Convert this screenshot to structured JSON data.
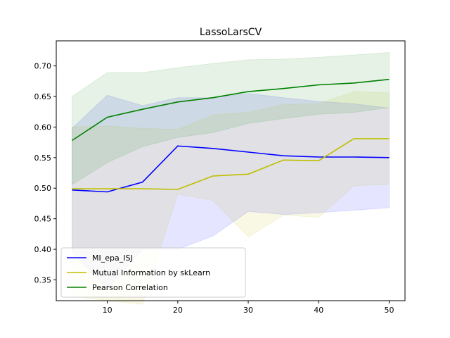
{
  "chart_data": {
    "type": "line",
    "title": "LassoLarsCV",
    "xlabel": "",
    "ylabel": "",
    "xlim": [
      2.75,
      52.25
    ],
    "ylim": [
      0.316,
      0.741
    ],
    "x_ticks": [
      10,
      20,
      30,
      40,
      50
    ],
    "y_ticks": [
      0.35,
      0.4,
      0.45,
      0.5,
      0.55,
      0.6,
      0.65,
      0.7
    ],
    "x_tick_labels": [
      "10",
      "20",
      "30",
      "40",
      "50"
    ],
    "y_tick_labels": [
      "0.35",
      "0.40",
      "0.45",
      "0.50",
      "0.55",
      "0.60",
      "0.65",
      "0.70"
    ],
    "grid": false,
    "legend_position": "lower-left",
    "x": [
      5,
      10,
      15,
      20,
      25,
      30,
      35,
      40,
      45,
      50
    ],
    "series": [
      {
        "name": "MI_epa_ISJ",
        "color": "#0000ff",
        "values": [
          0.497,
          0.494,
          0.51,
          0.569,
          0.565,
          0.559,
          0.553,
          0.551,
          0.551,
          0.55
        ],
        "lower": [
          0.395,
          0.336,
          0.4,
          0.4,
          0.422,
          0.462,
          0.457,
          0.46,
          0.464,
          0.468
        ],
        "upper": [
          0.598,
          0.652,
          0.635,
          0.648,
          0.648,
          0.655,
          0.648,
          0.642,
          0.638,
          0.631
        ]
      },
      {
        "name": "Mutual Information by skLearn",
        "color": "#bfbf00",
        "values": [
          0.499,
          0.499,
          0.499,
          0.498,
          0.52,
          0.523,
          0.546,
          0.545,
          0.581,
          0.581
        ],
        "lower": [
          0.323,
          0.316,
          0.31,
          0.49,
          0.48,
          0.42,
          0.456,
          0.452,
          0.504,
          0.506
        ],
        "upper": [
          0.6,
          0.602,
          0.598,
          0.596,
          0.62,
          0.624,
          0.637,
          0.638,
          0.658,
          0.656
        ]
      },
      {
        "name": "Pearson Correlation",
        "color": "#008000",
        "values": [
          0.578,
          0.616,
          0.629,
          0.641,
          0.648,
          0.658,
          0.663,
          0.669,
          0.672,
          0.678
        ],
        "lower": [
          0.506,
          0.542,
          0.568,
          0.583,
          0.591,
          0.606,
          0.614,
          0.621,
          0.624,
          0.632
        ],
        "upper": [
          0.65,
          0.689,
          0.689,
          0.697,
          0.704,
          0.71,
          0.711,
          0.714,
          0.718,
          0.722
        ]
      }
    ]
  }
}
